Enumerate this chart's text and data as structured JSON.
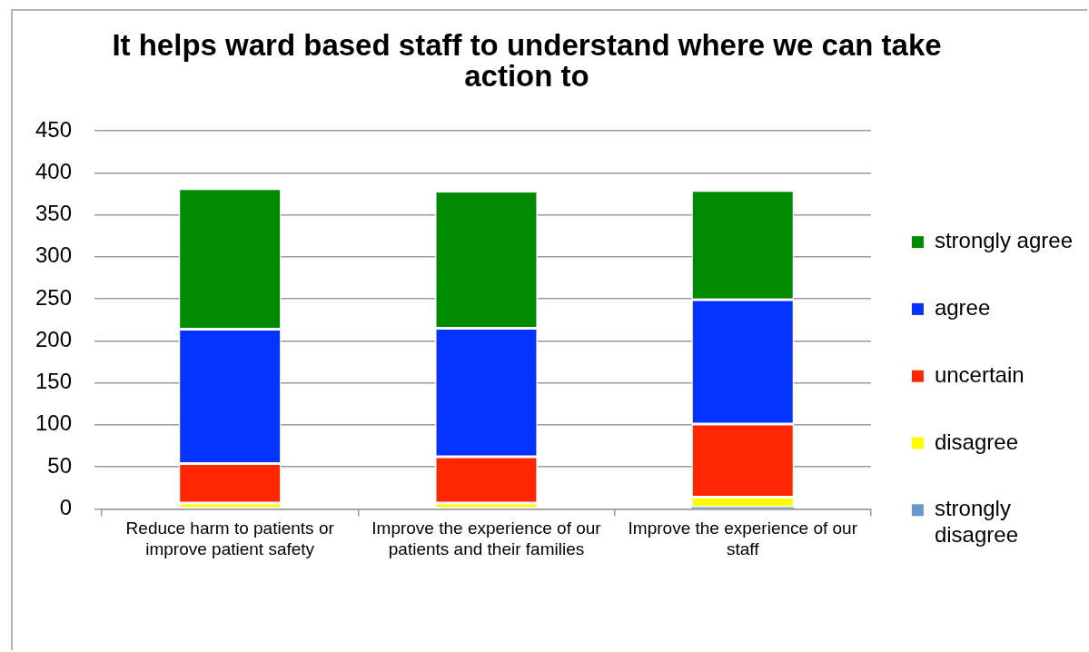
{
  "chart_data": {
    "type": "bar",
    "title": "It helps ward based staff to understand where we can take action to",
    "categories": [
      "Reduce harm to patients or improve patient safety",
      "Improve the experience of our patients and their families",
      "Improve the experience of our staff"
    ],
    "series": [
      {
        "name": "strongly disagree",
        "color": "#6699cc",
        "values": [
          0,
          0,
          2
        ]
      },
      {
        "name": "disagree",
        "color": "#fffb00",
        "values": [
          7,
          7,
          12
        ]
      },
      {
        "name": "uncertain",
        "color": "#ff2600",
        "values": [
          47,
          55,
          87
        ]
      },
      {
        "name": "agree",
        "color": "#0433ff",
        "values": [
          160,
          153,
          148
        ]
      },
      {
        "name": "strongly agree",
        "color": "#008a00",
        "values": [
          167,
          163,
          130
        ]
      }
    ],
    "stacked": true,
    "ylim": [
      0,
      450
    ],
    "yticks": [
      0,
      50,
      100,
      150,
      200,
      250,
      300,
      350,
      400,
      450
    ],
    "grid": "y",
    "legend": "right"
  }
}
